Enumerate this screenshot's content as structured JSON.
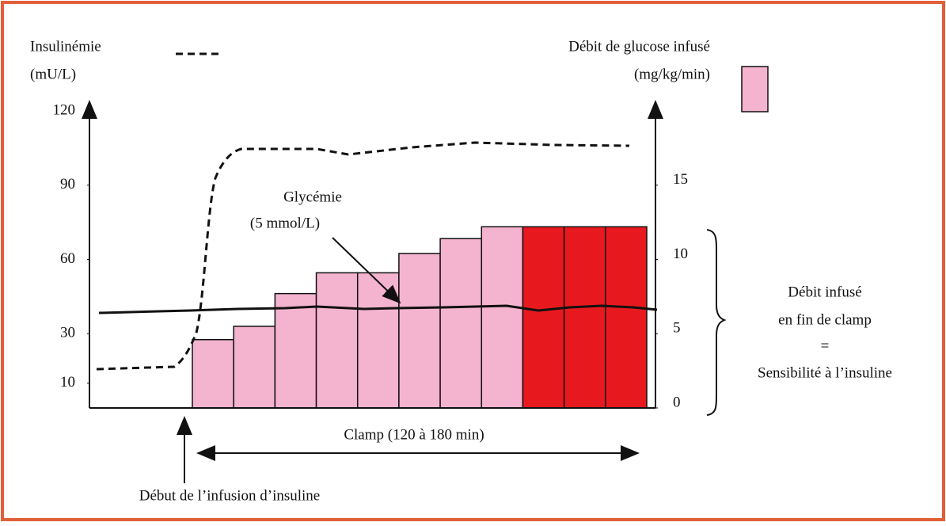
{
  "chart_data": {
    "type": "bar",
    "y_label": [
      "Insulinémie",
      "(mU/L)"
    ],
    "y2_label": [
      "Débit de glucose infusé",
      "(mg/kg/min)"
    ],
    "ylim": [
      0,
      120
    ],
    "yticks": [
      10,
      30,
      60,
      90,
      120
    ],
    "y2lim": [
      0,
      20
    ],
    "y2ticks": [
      0,
      5,
      10,
      15
    ],
    "values": [
      4.6,
      5.5,
      7.7,
      9.1,
      9.1,
      10.4,
      11.4,
      12.2,
      12.2,
      12.2,
      12.2
    ],
    "colors": [
      "#f4b3cf",
      "#f4b3cf",
      "#f4b3cf",
      "#f4b3cf",
      "#f4b3cf",
      "#f4b3cf",
      "#f4b3cf",
      "#f4b3cf",
      "#e8191e",
      "#e8191e",
      "#e8191e"
    ],
    "legend_color": "#f4b3cf",
    "annotations": {
      "glycemia": [
        "Glycémie",
        "(5 mmol/L)"
      ],
      "result": [
        "Débit infusé",
        "en fin de clamp",
        "=",
        "Sensibilité à l’insuline"
      ],
      "clamp": "Clamp (120 à 180 min)",
      "start": "Début de l’infusion d’insuline"
    }
  }
}
